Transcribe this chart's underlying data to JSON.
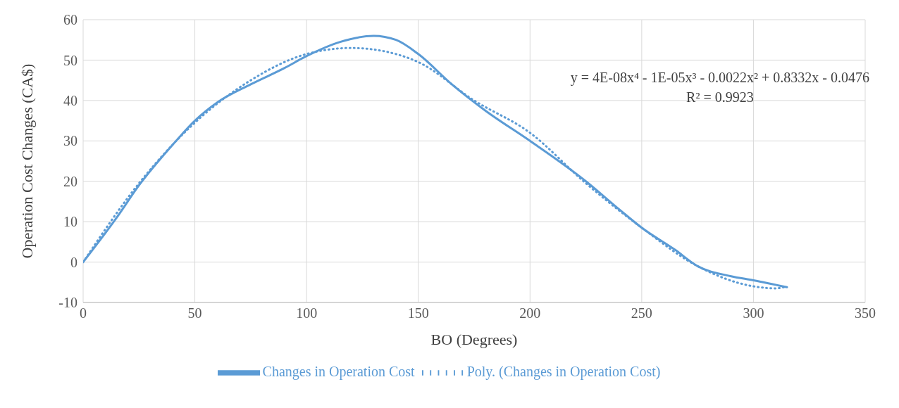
{
  "chart_data": {
    "type": "line",
    "xlabel": "BO (Degrees)",
    "ylabel": "Operation Cost Changes (CA$)",
    "annotations": [
      "y = 4E-08x⁴ - 1E-05x³ - 0.0022x² + 0.8332x - 0.0476",
      "R² = 0.9923"
    ],
    "series": [
      {
        "name": "Changes in Operation Cost",
        "color": "#5b9bd5",
        "line_style": "solid",
        "x": [
          0,
          15,
          25,
          40,
          50,
          60,
          75,
          90,
          100,
          115,
          130,
          140,
          150,
          165,
          180,
          200,
          225,
          240,
          250,
          265,
          275,
          290,
          300,
          315
        ],
        "values": [
          0,
          11,
          19,
          29,
          35,
          39.5,
          44,
          48,
          51,
          54.5,
          56,
          55,
          51.5,
          44,
          37.5,
          30,
          20,
          13,
          8.5,
          3,
          -1,
          -3.5,
          -4.5,
          -6.2
        ]
      },
      {
        "name": "Poly. (Changes in Operation Cost)",
        "color": "#5b9bd5",
        "line_style": "dotted",
        "x": [
          0,
          25,
          50,
          75,
          100,
          120,
          140,
          150,
          175,
          200,
          225,
          250,
          275,
          300,
          310,
          315
        ],
        "values": [
          0,
          19.5,
          34.5,
          45,
          51.5,
          53,
          51.5,
          49.5,
          40,
          32,
          19.5,
          8.5,
          -1,
          -6,
          -6.5,
          -6
        ]
      }
    ],
    "xlim": [
      0,
      350
    ],
    "xticks": [
      0,
      50,
      100,
      150,
      200,
      250,
      300,
      350
    ],
    "ylim": [
      -10,
      60
    ],
    "yticks": [
      -10,
      0,
      10,
      20,
      30,
      40,
      50,
      60
    ],
    "grid": true,
    "legend": "bottom",
    "marker": "none"
  }
}
